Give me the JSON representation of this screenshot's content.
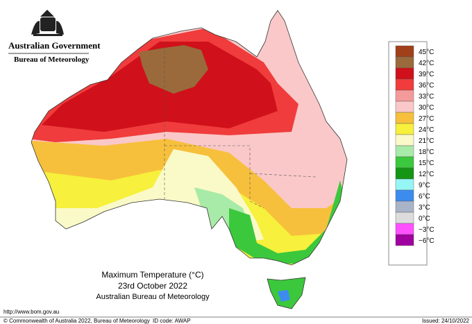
{
  "header": {
    "government": "Australian Government",
    "agency": "Bureau of Meteorology"
  },
  "title": {
    "line1": "Maximum Temperature (°C)",
    "line2": "23rd October 2022",
    "line3": "Australian Bureau of Meteorology"
  },
  "legend": [
    {
      "label": "45°C",
      "color": "#a0401a"
    },
    {
      "label": "42°C",
      "color": "#9a6a3c"
    },
    {
      "label": "39°C",
      "color": "#d0101a"
    },
    {
      "label": "36°C",
      "color": "#f03c3c"
    },
    {
      "label": "33°C",
      "color": "#f59a9a"
    },
    {
      "label": "30°C",
      "color": "#fac8c8"
    },
    {
      "label": "27°C",
      "color": "#f7c03c"
    },
    {
      "label": "24°C",
      "color": "#f7f03c"
    },
    {
      "label": "21°C",
      "color": "#fafac8"
    },
    {
      "label": "18°C",
      "color": "#a8eaa8"
    },
    {
      "label": "15°C",
      "color": "#3cc83c"
    },
    {
      "label": "12°C",
      "color": "#149614"
    },
    {
      "label": "9°C",
      "color": "#96f5f5"
    },
    {
      "label": "6°C",
      "color": "#3c8cf0"
    },
    {
      "label": "3°C",
      "color": "#aab4c8"
    },
    {
      "label": "0°C",
      "color": "#dcdcdc"
    },
    {
      "label": "−3°C",
      "color": "#ff50ff"
    },
    {
      "label": "−6°C",
      "color": "#a000a0"
    }
  ],
  "footer": {
    "url": "http://www.bom.gov.au",
    "copyright": "© Commonwealth of Australia 2022, Bureau of Meteorology",
    "id": "ID code: AWAP",
    "issued": "Issued: 24/10/2022"
  }
}
